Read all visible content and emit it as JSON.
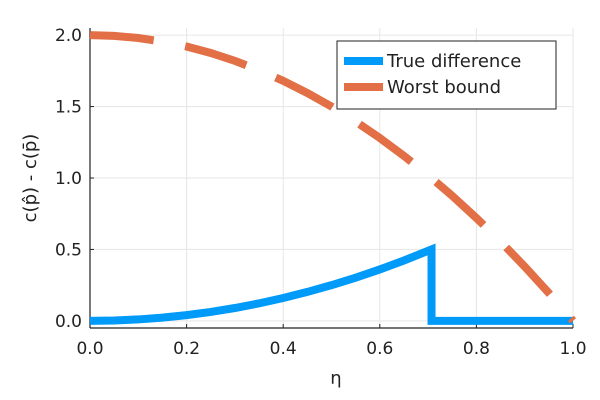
{
  "chart_data": {
    "type": "line",
    "xlabel": "η",
    "ylabel": "c(p̂) - c(p̄)",
    "xlim": [
      0.0,
      1.0
    ],
    "ylim": [
      -0.05,
      2.05
    ],
    "x_ticks": [
      0.0,
      0.2,
      0.4,
      0.6,
      0.8,
      1.0
    ],
    "x_tick_labels": [
      "0.0",
      "0.2",
      "0.4",
      "0.6",
      "0.8",
      "1.0"
    ],
    "y_ticks": [
      0.0,
      0.5,
      1.0,
      1.5,
      2.0
    ],
    "y_tick_labels": [
      "0.0",
      "0.5",
      "1.0",
      "1.5",
      "2.0"
    ],
    "grid": true,
    "legend_position": "top-right",
    "series": [
      {
        "name": "True difference",
        "color": "#009af9",
        "style": "solid",
        "x": [
          0.0,
          0.05,
          0.1,
          0.15,
          0.2,
          0.25,
          0.3,
          0.35,
          0.4,
          0.45,
          0.5,
          0.55,
          0.6,
          0.65,
          0.7071,
          0.7071,
          0.75,
          0.8,
          0.85,
          0.9,
          0.95,
          1.0
        ],
        "values": [
          0.0,
          0.0025,
          0.01,
          0.0225,
          0.04,
          0.0625,
          0.09,
          0.1225,
          0.16,
          0.2025,
          0.25,
          0.3025,
          0.36,
          0.4225,
          0.5,
          0.0,
          0.0,
          0.0,
          0.0,
          0.0,
          0.0,
          0.0
        ]
      },
      {
        "name": "Worst bound",
        "color": "#e26f46",
        "style": "dashed",
        "x": [
          0.0,
          0.05,
          0.1,
          0.15,
          0.2,
          0.25,
          0.3,
          0.35,
          0.4,
          0.45,
          0.5,
          0.55,
          0.6,
          0.65,
          0.7,
          0.75,
          0.8,
          0.85,
          0.9,
          0.95,
          1.0
        ],
        "values": [
          2.0,
          1.995,
          1.98,
          1.955,
          1.92,
          1.875,
          1.82,
          1.755,
          1.68,
          1.595,
          1.5,
          1.395,
          1.28,
          1.155,
          1.02,
          0.875,
          0.72,
          0.555,
          0.38,
          0.195,
          0.0
        ]
      }
    ]
  }
}
